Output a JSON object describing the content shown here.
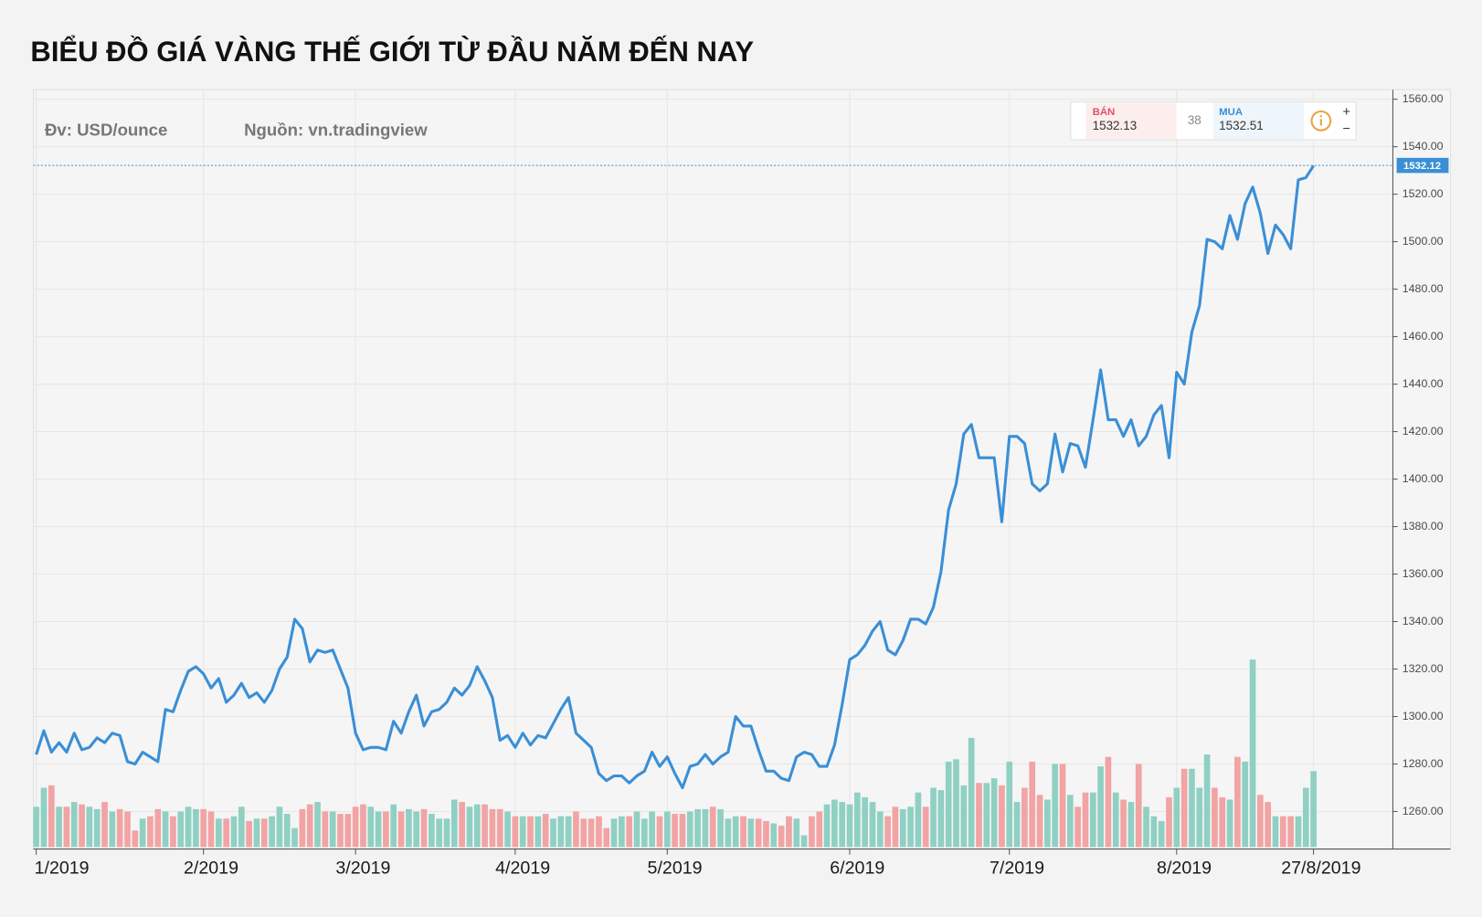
{
  "title": "BIỂU ĐỒ GIÁ VÀNG THẾ GIỚI TỪ ĐẦU NĂM ĐẾN NAY",
  "unit_note": "Đv: USD/ounce",
  "source": "Nguồn: vn.tradingview",
  "widget": {
    "sell_label": "BÁN",
    "sell_price": 1532.13,
    "spread": 38,
    "buy_label": "MUA",
    "buy_price": 1532.51,
    "plus": "+",
    "minus": "−"
  },
  "chart_data": {
    "type": "line",
    "categories": [
      "1/2019",
      null,
      null,
      null,
      null,
      null,
      null,
      null,
      null,
      null,
      null,
      null,
      null,
      null,
      null,
      null,
      null,
      null,
      null,
      null,
      null,
      null,
      "2/2019",
      null,
      null,
      null,
      null,
      null,
      null,
      null,
      null,
      null,
      null,
      null,
      null,
      null,
      null,
      null,
      null,
      null,
      null,
      null,
      "3/2019",
      null,
      null,
      null,
      null,
      null,
      null,
      null,
      null,
      null,
      null,
      null,
      null,
      null,
      null,
      null,
      null,
      null,
      null,
      null,
      null,
      "4/2019",
      null,
      null,
      null,
      null,
      null,
      null,
      null,
      null,
      null,
      null,
      null,
      null,
      null,
      null,
      null,
      null,
      null,
      null,
      null,
      "5/2019",
      null,
      null,
      null,
      null,
      null,
      null,
      null,
      null,
      null,
      null,
      null,
      null,
      null,
      null,
      null,
      null,
      null,
      null,
      null,
      null,
      null,
      null,
      null,
      "6/2019",
      null,
      null,
      null,
      null,
      null,
      null,
      null,
      null,
      null,
      null,
      null,
      null,
      null,
      null,
      null,
      null,
      null,
      null,
      null,
      null,
      "7/2019",
      null,
      null,
      null,
      null,
      null,
      null,
      null,
      null,
      null,
      null,
      null,
      null,
      null,
      null,
      null,
      null,
      null,
      null,
      null,
      null,
      null,
      "8/2019",
      null,
      null,
      null,
      null,
      null,
      null,
      null,
      null,
      null,
      null,
      null,
      null,
      null,
      null,
      null,
      null,
      null,
      "27/8/2019"
    ],
    "series": [
      {
        "color": "#3a8fd6",
        "values": [
          1284,
          1294,
          1285,
          1289,
          1285,
          1293,
          1286,
          1287,
          1291,
          1289,
          1293,
          1292,
          1281,
          1280,
          1285,
          1283,
          1281,
          1303,
          1302,
          1311,
          1319,
          1321,
          1318,
          1312,
          1316,
          1306,
          1309,
          1314,
          1308,
          1310,
          1306,
          1311,
          1320,
          1325,
          1341,
          1337,
          1323,
          1328,
          1327,
          1328,
          1320,
          1312,
          1293,
          1286,
          1287,
          1287,
          1286,
          1298,
          1293,
          1302,
          1309,
          1296,
          1302,
          1303,
          1306,
          1312,
          1309,
          1313,
          1321,
          1315,
          1308,
          1290,
          1292,
          1287,
          1293,
          1288,
          1292,
          1291,
          1297,
          1303,
          1308,
          1293,
          1290,
          1287,
          1276,
          1273,
          1275,
          1275,
          1272,
          1275,
          1277,
          1285,
          1279,
          1283,
          1276,
          1270,
          1279,
          1280,
          1284,
          1280,
          1283,
          1285,
          1300,
          1296,
          1296,
          1286,
          1277,
          1277,
          1274,
          1273,
          1283,
          1285,
          1284,
          1279,
          1279,
          1288,
          1305,
          1324,
          1326,
          1330,
          1336,
          1340,
          1328,
          1326,
          1332,
          1341,
          1341,
          1339,
          1346,
          1361,
          1387,
          1398,
          1419,
          1423,
          1409,
          1409,
          1409,
          1382,
          1418,
          1418,
          1415,
          1398,
          1395,
          1398,
          1419,
          1403,
          1415,
          1414,
          1405,
          1425,
          1446,
          1425,
          1425,
          1418,
          1425,
          1414,
          1418,
          1427,
          1431,
          1409,
          1445,
          1440,
          1462,
          1473,
          1501,
          1500,
          1497,
          1511,
          1501,
          1516,
          1523,
          1512,
          1495,
          1507,
          1503,
          1497,
          1526,
          1527,
          1532
        ]
      },
      {
        "type": "bar",
        "color_up": "#8fd0c3",
        "color_down": "#f2a3a3",
        "values": [
          1262,
          1270,
          1271,
          1262,
          1262,
          1264,
          1263,
          1262,
          1261,
          1264,
          1260,
          1261,
          1260,
          1252,
          1257,
          1258,
          1261,
          1260,
          1258,
          1260,
          1262,
          1261,
          1261,
          1260,
          1257,
          1257,
          1258,
          1262,
          1256,
          1257,
          1257,
          1258,
          1262,
          1259,
          1253,
          1261,
          1263,
          1264,
          1260,
          1260,
          1259,
          1259,
          1262,
          1263,
          1262,
          1260,
          1260,
          1263,
          1260,
          1261,
          1260,
          1261,
          1259,
          1257,
          1257,
          1265,
          1264,
          1262,
          1263,
          1263,
          1261,
          1261,
          1260,
          1258,
          1258,
          1258,
          1258,
          1259,
          1257,
          1258,
          1258,
          1260,
          1257,
          1257,
          1258,
          1253,
          1257,
          1258,
          1258,
          1260,
          1257,
          1260,
          1258,
          1260,
          1259,
          1259,
          1260,
          1261,
          1261,
          1262,
          1261,
          1257,
          1258,
          1258,
          1257,
          1257,
          1256,
          1255,
          1254,
          1258,
          1257,
          1250,
          1258,
          1260,
          1263,
          1265,
          1264,
          1263,
          1268,
          1266,
          1264,
          1260,
          1258,
          1262,
          1261,
          1262,
          1268,
          1262,
          1270,
          1269,
          1281,
          1282,
          1271,
          1291,
          1272,
          1272,
          1274,
          1271,
          1281,
          1264,
          1270,
          1281,
          1267,
          1265,
          1280,
          1280,
          1267,
          1262,
          1268,
          1268,
          1279,
          1283,
          1268,
          1265,
          1264,
          1280,
          1262,
          1258,
          1256,
          1266,
          1270,
          1278,
          1278,
          1270,
          1284,
          1270,
          1266,
          1265,
          1283,
          1281,
          1324,
          1267,
          1264,
          1258,
          1258,
          1258,
          1258,
          1270,
          1277
        ]
      }
    ],
    "ylim": [
      1245,
      1564
    ],
    "yticks": [
      {
        "value": 1260,
        "label": "1260.00"
      },
      {
        "value": 1280,
        "label": "1280.00"
      },
      {
        "value": 1300,
        "label": "1300.00"
      },
      {
        "value": 1320,
        "label": "1320.00"
      },
      {
        "value": 1340,
        "label": "1340.00"
      },
      {
        "value": 1360,
        "label": "1360.00"
      },
      {
        "value": 1380,
        "label": "1380.00"
      },
      {
        "value": 1400,
        "label": "1400.00"
      },
      {
        "value": 1420,
        "label": "1420.00"
      },
      {
        "value": 1440,
        "label": "1440.00"
      },
      {
        "value": 1460,
        "label": "1460.00"
      },
      {
        "value": 1480,
        "label": "1480.00"
      },
      {
        "value": 1500,
        "label": "1500.00"
      },
      {
        "value": 1520,
        "label": "1520.00"
      },
      {
        "value": 1540,
        "label": "1540.00"
      },
      {
        "value": 1560,
        "label": "1560.00"
      }
    ],
    "price_line": 1532.12,
    "grid": true
  }
}
